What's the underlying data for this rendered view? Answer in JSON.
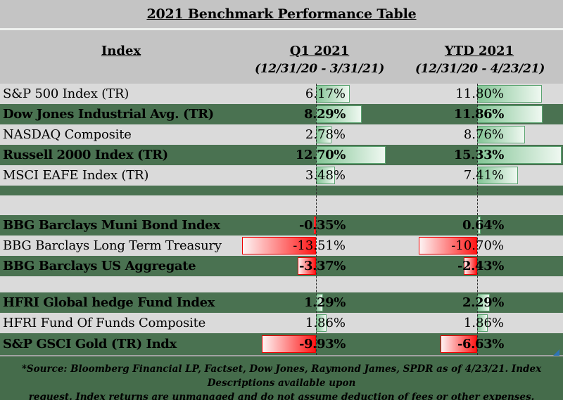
{
  "title": "2021 Benchmark Performance Table",
  "columns": {
    "index_label": "Index",
    "q1": {
      "label": "Q1 2021",
      "sublabel": "(12/31/20 - 3/31/21)"
    },
    "ytd": {
      "label": "YTD 2021",
      "sublabel": "(12/31/20 - 4/23/21)"
    }
  },
  "chart_data": {
    "type": "table",
    "title": "2021 Benchmark Performance Table",
    "column_headers": [
      "Index",
      "Q1 2021 (12/31/20 - 3/31/21)",
      "YTD 2021 (12/31/20 - 4/23/21)"
    ],
    "value_unit": "percent",
    "bar_style": "zero-anchored data bars, green gradient for positive, red gradient for negative, dashed zero axis",
    "rows": [
      {
        "label": "S&P 500 Index (TR)",
        "q1": 6.17,
        "ytd": 11.8,
        "emphasis": false
      },
      {
        "label": "Dow Jones Industrial Avg. (TR)",
        "q1": 8.29,
        "ytd": 11.86,
        "emphasis": true
      },
      {
        "label": "NASDAQ Composite",
        "q1": 2.78,
        "ytd": 8.76,
        "emphasis": false
      },
      {
        "label": "Russell 2000 Index (TR)",
        "q1": 12.7,
        "ytd": 15.33,
        "emphasis": true
      },
      {
        "label": "MSCI EAFE Index (TR)",
        "q1": 3.48,
        "ytd": 7.41,
        "emphasis": false
      },
      {
        "label": "BBG Barclays Muni Bond Index",
        "q1": -0.35,
        "ytd": 0.64,
        "emphasis": true
      },
      {
        "label": "BBG Barclays Long Term Treasury",
        "q1": -13.51,
        "ytd": -10.7,
        "emphasis": false
      },
      {
        "label": "BBG Barclays US Aggregate",
        "q1": -3.37,
        "ytd": -2.43,
        "emphasis": true
      },
      {
        "label": "HFRI Global hedge Fund Index",
        "q1": 1.29,
        "ytd": 2.29,
        "emphasis": true
      },
      {
        "label": "HFRI Fund Of Funds Composite",
        "q1": 1.86,
        "ytd": 1.86,
        "emphasis": false
      },
      {
        "label": "S&P GSCI Gold (TR) Indx",
        "q1": -9.93,
        "ytd": -6.63,
        "emphasis": true
      }
    ],
    "section_breaks_after_row": [
      4,
      7
    ]
  },
  "footnote": {
    "line1": "*Source: Bloomberg Financial LP, Factset, Dow Jones, Raymond James, SPDR  as of 4/23/21. Index Descriptions available upon",
    "line2": "request. Index returns are unmanaged and do not assume deduction of fees or other expenses."
  },
  "colors": {
    "background": "#c4c4c4",
    "row_gray": "#dadada",
    "row_green": "#4a7251",
    "footer_green": "#456c4b",
    "bar_positive_solid": "#84c596",
    "bar_positive_fade": "#eff8f1",
    "bar_positive_border": "#5ba471",
    "bar_negative_solid": "#ff1616",
    "bar_negative_fade": "#fdf4f4",
    "bar_negative_border": "#ee0000",
    "corner_marker_blue": "#2e74b5"
  },
  "icons": {
    "corner_marker": "blue-triangle-icon"
  }
}
